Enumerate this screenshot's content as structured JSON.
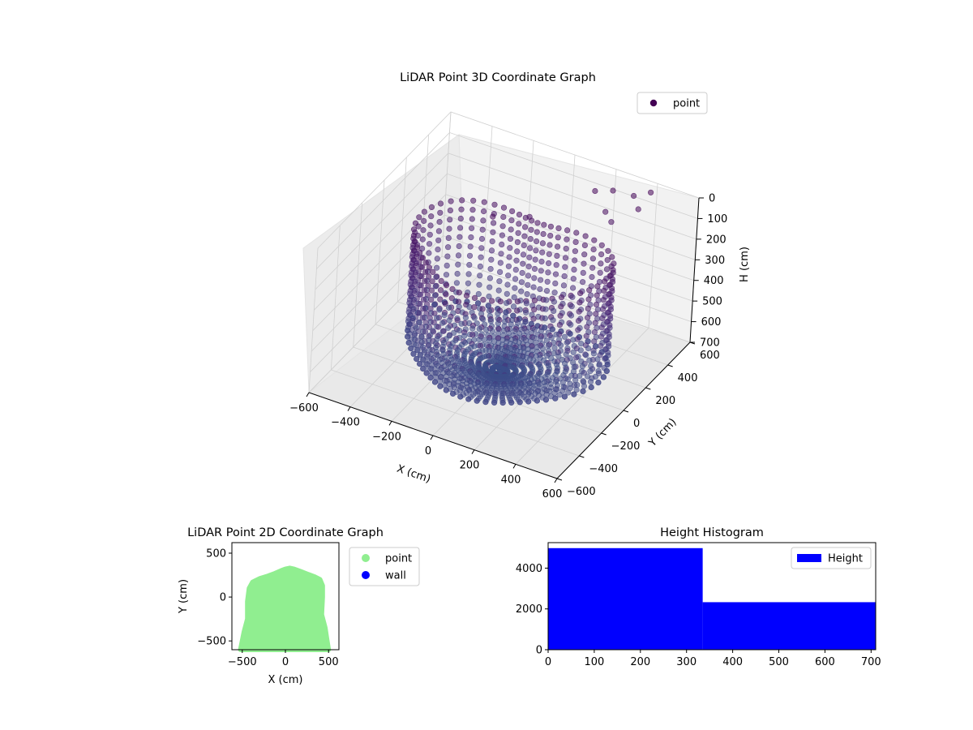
{
  "chart_data": [
    {
      "type": "scatter",
      "projection": "3d",
      "title": "LiDAR Point 3D Coordinate Graph",
      "xlabel": "X (cm)",
      "ylabel": "Y (cm)",
      "zlabel": "H (cm)",
      "xlim": [
        -600,
        600
      ],
      "ylim": [
        -600,
        600
      ],
      "zlim": [
        0,
        700
      ],
      "z_inverted": true,
      "xticks": [
        "−600",
        "−400",
        "−200",
        "0",
        "200",
        "400",
        "600"
      ],
      "yticks": [
        "−600",
        "−400",
        "−200",
        "0",
        "200",
        "400",
        "600"
      ],
      "zticks": [
        "0",
        "100",
        "200",
        "300",
        "400",
        "500",
        "600",
        "700"
      ],
      "grid": true,
      "legend": "top-right",
      "series": [
        {
          "name": "point",
          "colormap": "viridis (dark purple to blue by height)",
          "shape": "radial rays around a roughly cylindrical wall",
          "outlier_points": [
            {
              "x": 180,
              "y": 450,
              "h": 30
            },
            {
              "x": 250,
              "y": 480,
              "h": 20
            },
            {
              "x": 330,
              "y": 520,
              "h": 40
            },
            {
              "x": 250,
              "y": 420,
              "h": 90
            },
            {
              "x": 300,
              "y": 380,
              "h": 100
            },
            {
              "x": 380,
              "y": 470,
              "h": 60
            },
            {
              "x": 400,
              "y": 540,
              "h": 10
            },
            {
              "x": 0,
              "y": 200,
              "h": 80
            },
            {
              "x": -120,
              "y": 90,
              "h": 60
            }
          ]
        }
      ]
    },
    {
      "type": "scatter",
      "title": "LiDAR Point 2D Coordinate Graph",
      "xlabel": "X (cm)",
      "ylabel": "Y (cm)",
      "xlim": [
        -620,
        620
      ],
      "ylim": [
        -600,
        620
      ],
      "xticks": [
        -500,
        0,
        500
      ],
      "yticks": [
        -500,
        0,
        500
      ],
      "legend": "outside-right",
      "series": [
        {
          "name": "point",
          "color": "#90ee90",
          "outline": [
            [
              -520,
              -600
            ],
            [
              -480,
              -400
            ],
            [
              -440,
              -250
            ],
            [
              -440,
              -50
            ],
            [
              -420,
              100
            ],
            [
              -380,
              170
            ],
            [
              -300,
              210
            ],
            [
              -200,
              240
            ],
            [
              -120,
              270
            ],
            [
              -50,
              300
            ],
            [
              0,
              320
            ],
            [
              50,
              330
            ],
            [
              100,
              320
            ],
            [
              180,
              290
            ],
            [
              260,
              260
            ],
            [
              340,
              230
            ],
            [
              400,
              200
            ],
            [
              430,
              130
            ],
            [
              430,
              0
            ],
            [
              420,
              -200
            ],
            [
              460,
              -350
            ],
            [
              480,
              -480
            ],
            [
              500,
              -600
            ]
          ]
        },
        {
          "name": "wall",
          "color": "#0000ff",
          "points": []
        }
      ]
    },
    {
      "type": "bar",
      "subtype": "histogram",
      "title": "Height Histogram",
      "xlabel": "",
      "ylabel": "",
      "xlim": [
        0,
        710
      ],
      "ylim": [
        0,
        5250
      ],
      "xticks": [
        0,
        100,
        200,
        300,
        400,
        500,
        600,
        700
      ],
      "yticks": [
        0,
        2000,
        4000
      ],
      "legend": "top-right",
      "series": [
        {
          "name": "Height",
          "color": "#0000ff",
          "bins": [
            {
              "x0": 0,
              "x1": 335,
              "value": 4980
            },
            {
              "x0": 335,
              "x1": 710,
              "value": 2330
            }
          ]
        }
      ]
    }
  ]
}
